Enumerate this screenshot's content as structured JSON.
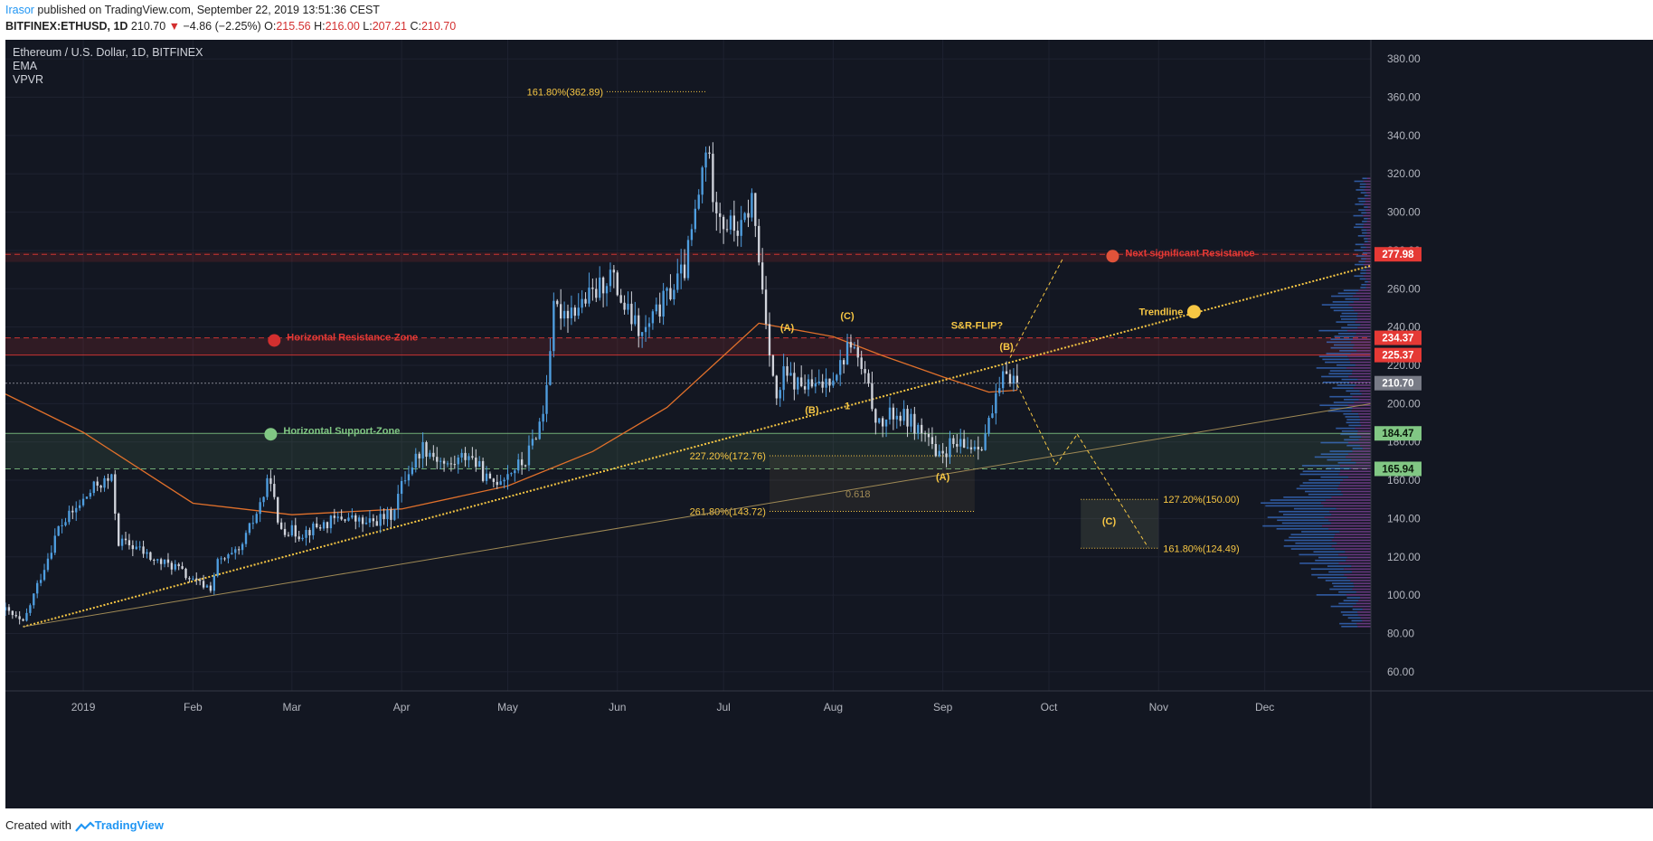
{
  "header": {
    "user": "Irasor",
    "published": " published on TradingView.com, September 22, 2019 13:51:36 CEST",
    "symbol": "BITFINEX:ETHUSD, 1D",
    "price": "210.70",
    "arrow": "▼",
    "change": "−4.86 (−2.25%)",
    "o_label": "O:",
    "o": "215.56",
    "h_label": "H:",
    "h": "216.00",
    "l_label": "L:",
    "l": "207.21",
    "c_label": "C:",
    "c": "210.70"
  },
  "legend": {
    "title": "Ethereum / U.S. Dollar, 1D, BITFINEX",
    "indicator1": "EMA",
    "indicator2": "VPVR"
  },
  "footer": {
    "created_with": "Created with",
    "brand": "TradingView"
  },
  "colors": {
    "background": "#131722",
    "up": "#4f9ee0",
    "down": "#d1d4dc",
    "ema": "#e0702b",
    "resistance": "#e53935",
    "support": "#81c784",
    "annotation": "#f7c744"
  },
  "chart_data": {
    "type": "candlestick",
    "ylim": [
      50,
      390
    ],
    "y_ticks": [
      60,
      80,
      100,
      120,
      140,
      160,
      180,
      200,
      220,
      240,
      260,
      280,
      300,
      320,
      340,
      360,
      380
    ],
    "y_tick_labels": [
      "60.00",
      "80.00",
      "100.00",
      "120.00",
      "140.00",
      "160.00",
      "180.00",
      "200.00",
      "220.00",
      "240.00",
      "260.00",
      "280.00",
      "300.00",
      "320.00",
      "340.00",
      "360.00",
      "380.00"
    ],
    "x_range": [
      "2018-12-10",
      "2019-12-31"
    ],
    "x_ticks": [
      {
        "label": "2019",
        "date": "2019-01-01"
      },
      {
        "label": "Feb",
        "date": "2019-02-01"
      },
      {
        "label": "Mar",
        "date": "2019-03-01"
      },
      {
        "label": "Apr",
        "date": "2019-04-01"
      },
      {
        "label": "May",
        "date": "2019-05-01"
      },
      {
        "label": "Jun",
        "date": "2019-06-01"
      },
      {
        "label": "Jul",
        "date": "2019-07-01"
      },
      {
        "label": "Aug",
        "date": "2019-08-01"
      },
      {
        "label": "Sep",
        "date": "2019-09-01"
      },
      {
        "label": "Oct",
        "date": "2019-10-01"
      },
      {
        "label": "Nov",
        "date": "2019-11-01"
      },
      {
        "label": "Dec",
        "date": "2019-12-01"
      }
    ],
    "price_anchors": [
      [
        "2018-12-10",
        92
      ],
      [
        "2018-12-15",
        85
      ],
      [
        "2018-12-20",
        110
      ],
      [
        "2018-12-25",
        135
      ],
      [
        "2018-12-30",
        145
      ],
      [
        "2019-01-05",
        158
      ],
      [
        "2019-01-09",
        160
      ],
      [
        "2019-01-11",
        128
      ],
      [
        "2019-01-16",
        125
      ],
      [
        "2019-01-21",
        118
      ],
      [
        "2019-01-27",
        115
      ],
      [
        "2019-02-01",
        107
      ],
      [
        "2019-02-06",
        104
      ],
      [
        "2019-02-08",
        117
      ],
      [
        "2019-02-14",
        122
      ],
      [
        "2019-02-19",
        143
      ],
      [
        "2019-02-23",
        162
      ],
      [
        "2019-02-25",
        136
      ],
      [
        "2019-03-03",
        132
      ],
      [
        "2019-03-10",
        137
      ],
      [
        "2019-03-16",
        141
      ],
      [
        "2019-03-22",
        137
      ],
      [
        "2019-03-29",
        142
      ],
      [
        "2019-04-02",
        162
      ],
      [
        "2019-04-07",
        178
      ],
      [
        "2019-04-14",
        167
      ],
      [
        "2019-04-20",
        174
      ],
      [
        "2019-04-26",
        158
      ],
      [
        "2019-05-01",
        164
      ],
      [
        "2019-05-06",
        170
      ],
      [
        "2019-05-11",
        195
      ],
      [
        "2019-05-14",
        248
      ],
      [
        "2019-05-20",
        250
      ],
      [
        "2019-05-26",
        258
      ],
      [
        "2019-05-30",
        268
      ],
      [
        "2019-06-03",
        250
      ],
      [
        "2019-06-08",
        235
      ],
      [
        "2019-06-15",
        256
      ],
      [
        "2019-06-20",
        270
      ],
      [
        "2019-06-24",
        308
      ],
      [
        "2019-06-26",
        335
      ],
      [
        "2019-06-28",
        312
      ],
      [
        "2019-07-01",
        295
      ],
      [
        "2019-07-06",
        290
      ],
      [
        "2019-07-09",
        307
      ],
      [
        "2019-07-11",
        275
      ],
      [
        "2019-07-14",
        230
      ],
      [
        "2019-07-16",
        200
      ],
      [
        "2019-07-18",
        215
      ],
      [
        "2019-07-22",
        210
      ],
      [
        "2019-07-28",
        208
      ],
      [
        "2019-08-03",
        220
      ],
      [
        "2019-08-06",
        233
      ],
      [
        "2019-08-10",
        212
      ],
      [
        "2019-08-14",
        188
      ],
      [
        "2019-08-18",
        195
      ],
      [
        "2019-08-22",
        192
      ],
      [
        "2019-08-28",
        182
      ],
      [
        "2019-08-30",
        170
      ],
      [
        "2019-09-03",
        178
      ],
      [
        "2019-09-07",
        177
      ],
      [
        "2019-09-12",
        180
      ],
      [
        "2019-09-15",
        195
      ],
      [
        "2019-09-19",
        218
      ],
      [
        "2019-09-22",
        210.7
      ]
    ],
    "ema": [
      [
        "2018-12-10",
        205
      ],
      [
        "2019-01-01",
        185
      ],
      [
        "2019-02-01",
        148
      ],
      [
        "2019-03-01",
        142
      ],
      [
        "2019-04-01",
        145
      ],
      [
        "2019-05-01",
        157
      ],
      [
        "2019-05-25",
        175
      ],
      [
        "2019-06-15",
        198
      ],
      [
        "2019-07-01",
        225
      ],
      [
        "2019-07-11",
        242
      ],
      [
        "2019-08-01",
        235
      ],
      [
        "2019-08-15",
        225
      ],
      [
        "2019-09-01",
        214
      ],
      [
        "2019-09-14",
        206
      ],
      [
        "2019-09-22",
        207
      ]
    ],
    "levels": [
      {
        "price": 277.98,
        "label": "277.98",
        "style": "dashed",
        "color": "#e53935",
        "badge": "#e53935",
        "zone": [
          274,
          279
        ]
      },
      {
        "price": 234.37,
        "label": "234.37",
        "style": "dashed",
        "color": "#e53935",
        "badge": "#e53935"
      },
      {
        "price": 225.37,
        "label": "225.37",
        "style": "solid",
        "color": "#e53935",
        "badge": "#e53935",
        "zone": [
          225.37,
          234.37
        ]
      },
      {
        "price": 210.7,
        "label": "210.70",
        "style": "dotted",
        "color": "#9598a1",
        "badge": "#787b86"
      },
      {
        "price": 184.47,
        "label": "184.47",
        "style": "solid",
        "color": "#81c784",
        "badge": "#81c784",
        "zone": [
          165.94,
          184.47
        ]
      },
      {
        "price": 165.94,
        "label": "165.94",
        "style": "dashed",
        "color": "#81c784",
        "badge": "#81c784"
      }
    ],
    "trendline": {
      "label": "Trendline",
      "from": [
        "2018-12-15",
        83.5
      ],
      "to": [
        "2019-12-31",
        272
      ]
    },
    "lower_trendline": {
      "from": [
        "2018-12-15",
        83.5
      ],
      "to": [
        "2019-12-31",
        200
      ]
    },
    "fib_lines": [
      {
        "label": "161.80%(362.89)",
        "price": 362.89,
        "from": "2019-05-29",
        "to": "2019-06-26"
      },
      {
        "label": "227.20%(172.76)",
        "price": 172.76,
        "from": "2019-07-14",
        "to": "2019-09-10"
      },
      {
        "label": "261.80%(143.72)",
        "price": 143.72,
        "from": "2019-07-14",
        "to": "2019-09-10"
      },
      {
        "label": "127.20%(150.00)",
        "price": 150.0,
        "from": "2019-10-10",
        "to": "2019-11-01"
      },
      {
        "label": "161.80%(124.49)",
        "price": 124.49,
        "from": "2019-10-10",
        "to": "2019-11-01"
      }
    ],
    "annotations": [
      {
        "text": "Horizontal Resistance-Zone",
        "date": "2019-02-24",
        "price": 233,
        "color": "#e53935",
        "dot": "#d32f2f"
      },
      {
        "text": "Horizontal Support-Zone",
        "date": "2019-02-23",
        "price": 184,
        "color": "#81c784",
        "dot": "#81c784"
      },
      {
        "text": "Next significant Resistance",
        "date": "2019-10-19",
        "price": 277,
        "color": "#e53935",
        "dot": "#e0533a"
      },
      {
        "text": "Trendline",
        "date": "2019-11-11",
        "price": 248,
        "color": "#f7c744",
        "dot": "#f7c744"
      },
      {
        "text": "S&R-FLIP?",
        "date": "2019-09-18",
        "price": 241,
        "color": "#f7c744"
      }
    ],
    "wave_labels": [
      {
        "text": "(A)",
        "date": "2019-07-19",
        "price": 238
      },
      {
        "text": "(C)",
        "date": "2019-08-05",
        "price": 244
      },
      {
        "text": "(B)",
        "date": "2019-07-26",
        "price": 195
      },
      {
        "text": "1",
        "date": "2019-08-05",
        "price": 197
      },
      {
        "text": "(B)",
        "date": "2019-09-19",
        "price": 228
      },
      {
        "text": "(A)",
        "date": "2019-09-01",
        "price": 160
      },
      {
        "text": "(C)",
        "date": "2019-10-18",
        "price": 137
      },
      {
        "text": "0.618",
        "date": "2019-08-08",
        "price": 151
      }
    ]
  }
}
